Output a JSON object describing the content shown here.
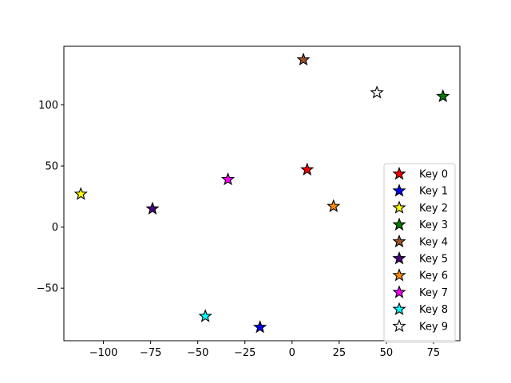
{
  "chart_data": {
    "type": "scatter",
    "title": "",
    "xlabel": "",
    "ylabel": "",
    "xlim": [
      -121,
      89
    ],
    "ylim": [
      -93,
      148
    ],
    "x_ticks": [
      -100,
      -75,
      -50,
      -25,
      0,
      25,
      50,
      75
    ],
    "x_tick_labels": [
      "−100",
      "−75",
      "−50",
      "−25",
      "0",
      "25",
      "50",
      "75"
    ],
    "y_ticks": [
      -50,
      0,
      50,
      100
    ],
    "y_tick_labels": [
      "−50",
      "0",
      "50",
      "100"
    ],
    "grid": false,
    "marker": "star",
    "legend_position": "lower-right",
    "series": [
      {
        "name": "Key 0",
        "color": "#ff0000",
        "x": 8,
        "y": 47
      },
      {
        "name": "Key 1",
        "color": "#0000ff",
        "x": -17,
        "y": -82
      },
      {
        "name": "Key 2",
        "color": "#ffff00",
        "x": -112,
        "y": 27
      },
      {
        "name": "Key 3",
        "color": "#008000",
        "x": 80,
        "y": 107
      },
      {
        "name": "Key 4",
        "color": "#a0522d",
        "x": 6,
        "y": 137
      },
      {
        "name": "Key 5",
        "color": "#4b0082",
        "x": -74,
        "y": 15
      },
      {
        "name": "Key 6",
        "color": "#ff8c00",
        "x": 22,
        "y": 17
      },
      {
        "name": "Key 7",
        "color": "#ff00ff",
        "x": -34,
        "y": 39
      },
      {
        "name": "Key 8",
        "color": "#00ffff",
        "x": -46,
        "y": -73
      },
      {
        "name": "Key 9",
        "color": "#ffffff",
        "x": 45,
        "y": 110
      }
    ]
  }
}
